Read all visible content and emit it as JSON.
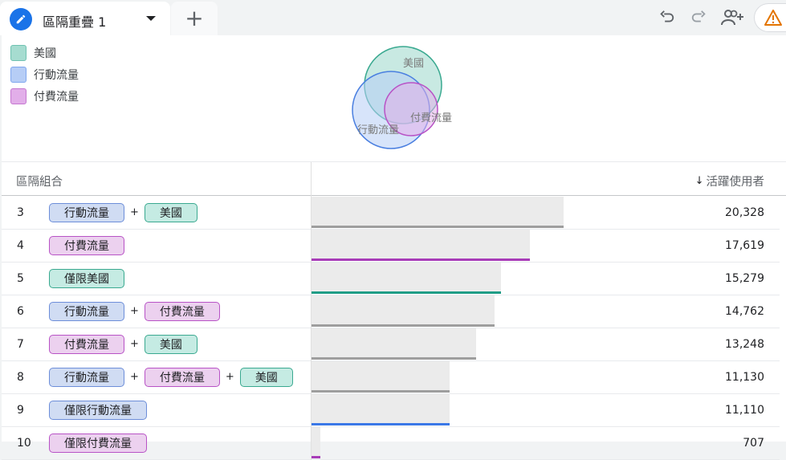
{
  "tab": {
    "title": "區隔重疊 1",
    "add_label": "+"
  },
  "toolbar": {
    "undo_icon": "undo-icon",
    "redo_icon": "redo-icon",
    "share_icon": "person-add-icon",
    "warning_icon": "warning-icon"
  },
  "legend": [
    {
      "label": "美國",
      "color": "#a6dcd0"
    },
    {
      "label": "行動流量",
      "color": "#b6cdf6"
    },
    {
      "label": "付費流量",
      "color": "#e2aee9"
    }
  ],
  "venn": {
    "labels": {
      "us": "美國",
      "mobile": "行動流量",
      "paid": "付費流量"
    }
  },
  "table": {
    "col_left": "區隔組合",
    "col_right": "活躍使用者",
    "sort_arrow": "↓",
    "max_value": 20328,
    "rows": [
      {
        "num": "3",
        "chips": [
          {
            "label": "行動流量",
            "kind": "mobile"
          },
          {
            "label": "美國",
            "kind": "us"
          }
        ],
        "value": 20328,
        "display": "20,328",
        "line_color": "#9e9e9e"
      },
      {
        "num": "4",
        "chips": [
          {
            "label": "付費流量",
            "kind": "paid"
          }
        ],
        "value": 17619,
        "display": "17,619",
        "line_color": "#a83cb8"
      },
      {
        "num": "5",
        "chips": [
          {
            "label": "僅限美國",
            "kind": "us"
          }
        ],
        "value": 15279,
        "display": "15,279",
        "line_color": "#1f9c86"
      },
      {
        "num": "6",
        "chips": [
          {
            "label": "行動流量",
            "kind": "mobile"
          },
          {
            "label": "付費流量",
            "kind": "paid"
          }
        ],
        "value": 14762,
        "display": "14,762",
        "line_color": "#9e9e9e"
      },
      {
        "num": "7",
        "chips": [
          {
            "label": "付費流量",
            "kind": "paid"
          },
          {
            "label": "美國",
            "kind": "us"
          }
        ],
        "value": 13248,
        "display": "13,248",
        "line_color": "#9e9e9e"
      },
      {
        "num": "8",
        "chips": [
          {
            "label": "行動流量",
            "kind": "mobile"
          },
          {
            "label": "付費流量",
            "kind": "paid"
          },
          {
            "label": "美國",
            "kind": "us"
          }
        ],
        "value": 11130,
        "display": "11,130",
        "line_color": "#9e9e9e"
      },
      {
        "num": "9",
        "chips": [
          {
            "label": "僅限行動流量",
            "kind": "mobile"
          }
        ],
        "value": 11110,
        "display": "11,110",
        "line_color": "#3b78e7"
      },
      {
        "num": "10",
        "chips": [
          {
            "label": "僅限付費流量",
            "kind": "paid"
          }
        ],
        "value": 707,
        "display": "707",
        "line_color": "#a83cb8"
      }
    ]
  }
}
